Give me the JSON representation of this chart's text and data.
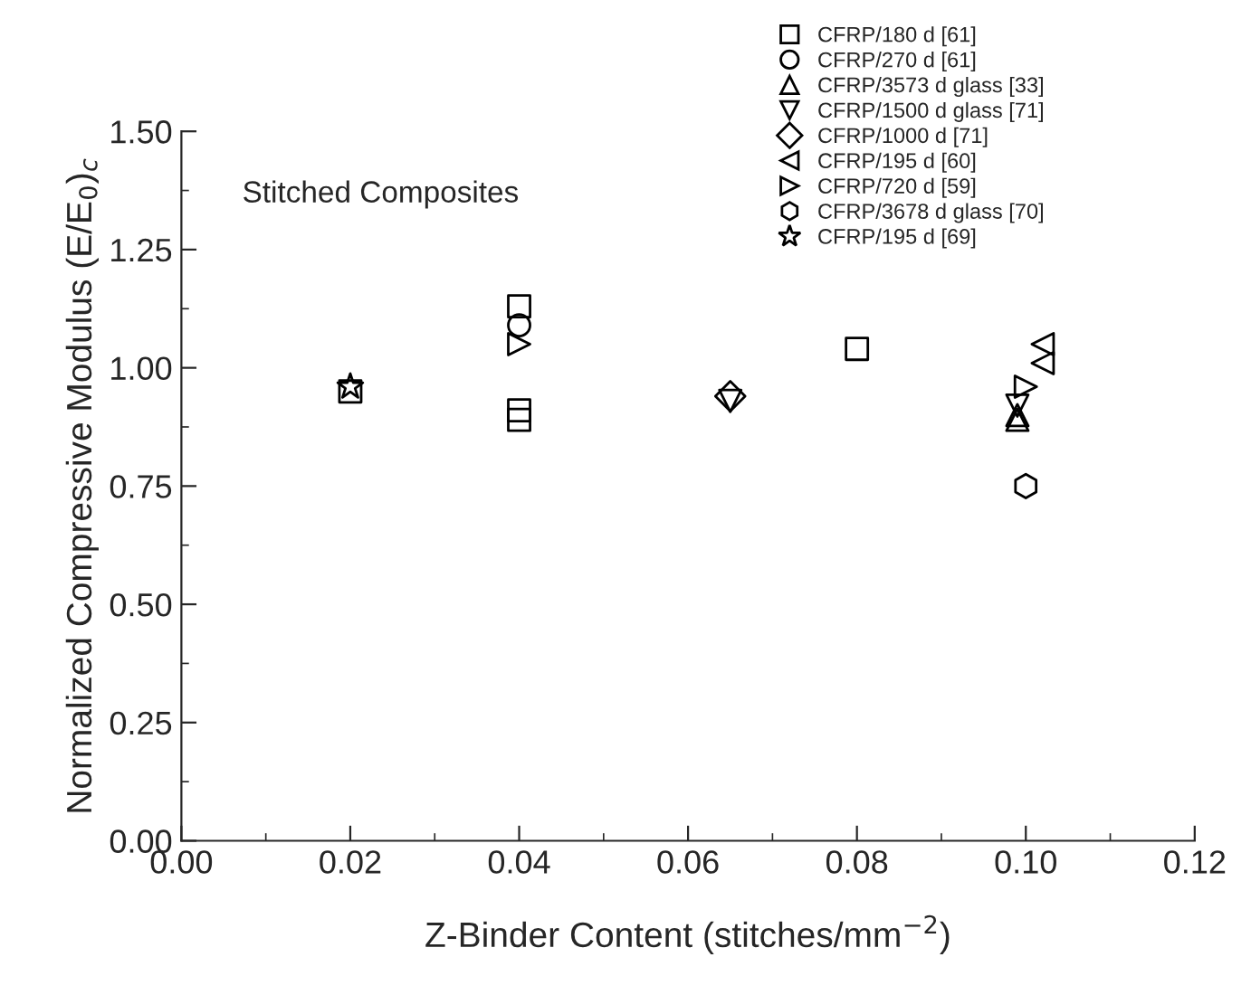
{
  "chart_data": {
    "type": "scatter",
    "xlabel": "Z-Binder Content (stitches/mm$^{−2}$)",
    "ylabel": "Normalized Compressive Modulus (E/E$_{0}$)$_{c}$",
    "annotations": [
      "Stitched Composites"
    ],
    "xlim": [
      0.0,
      0.12
    ],
    "xticks": [
      "0.00",
      0.02,
      0.04,
      0.06,
      0.08,
      "0.10",
      0.12
    ],
    "ylim": [
      0.0,
      1.5
    ],
    "yticks": [
      "0.00",
      0.25,
      "0.50",
      0.75,
      "1.00",
      1.25,
      "1.50"
    ],
    "grid": false,
    "legend": "top right",
    "series": [
      {
        "name": "CFRP/180 d [61]",
        "color": "#000000",
        "marker": "square",
        "x": [
          0.02,
          0.04,
          0.04,
          0.04,
          0.08
        ],
        "values": [
          0.95,
          1.13,
          0.91,
          0.89,
          1.04
        ]
      },
      {
        "name": "CFRP/270 d [61]",
        "color": "#000000",
        "marker": "circle",
        "x": [
          0.04
        ],
        "values": [
          1.09
        ]
      },
      {
        "name": "CFRP/3573 d glass [33]",
        "color": "#000000",
        "marker": "triangle",
        "x": [
          0.099,
          0.099
        ],
        "values": [
          0.9,
          0.89
        ]
      },
      {
        "name": "CFRP/1500 d glass [71]",
        "color": "#000000",
        "marker": "triangle_down",
        "x": [
          0.065,
          0.099
        ],
        "values": [
          0.93,
          0.92
        ]
      },
      {
        "name": "CFRP/1000 d [71]",
        "color": "#000000",
        "marker": "diamond",
        "x": [
          0.065
        ],
        "values": [
          0.94
        ]
      },
      {
        "name": "CFRP/195 d [60]",
        "color": "#000000",
        "marker": "triangle_left",
        "x": [
          0.102,
          0.102
        ],
        "values": [
          1.05,
          1.01
        ]
      },
      {
        "name": "CFRP/720 d [59]",
        "color": "#000000",
        "marker": "triangle_right",
        "x": [
          0.04,
          0.1
        ],
        "values": [
          1.05,
          0.96
        ]
      },
      {
        "name": "CFRP/3678 d glass [70]",
        "color": "#000000",
        "x": [
          0.1
        ],
        "values": [
          0.75
        ]
      },
      {
        "name": "CFRP/195 d [69]",
        "color": "#000000",
        "marker": "star",
        "x": [
          0.02
        ],
        "values": [
          0.96
        ]
      }
    ]
  }
}
